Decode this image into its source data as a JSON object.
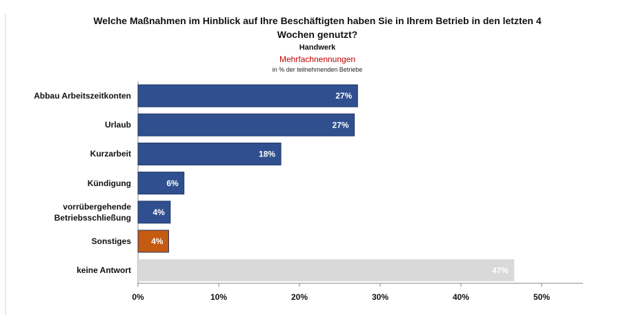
{
  "chart_data": {
    "type": "bar",
    "orientation": "horizontal",
    "title": "Welche Maßnahmen im Hinblick auf Ihre Beschäftigten haben Sie in Ihrem Betrieb in den letzten 4 Wochen genutzt?",
    "subtitle": "Handwerk",
    "annotations": [
      "Mehrfachnennungen",
      "in % der teilnehmenden Betriebe"
    ],
    "categories": [
      "Abbau Arbeitszeitkonten",
      "Urlaub",
      "Kurzarbeit",
      "Kündigung",
      "vorrübergehende Betriebsschließung",
      "Sonstiges",
      "keine Antwort"
    ],
    "values": [
      27.2,
      26.8,
      17.7,
      5.7,
      4.0,
      3.8,
      46.6
    ],
    "value_labels": [
      "27%",
      "27%",
      "18%",
      "6%",
      "4%",
      "4%",
      "47%"
    ],
    "colors": [
      "#2f4f8f",
      "#2f4f8f",
      "#2f4f8f",
      "#2f4f8f",
      "#2f4f8f",
      "#c55a11",
      "#d9d9d9"
    ],
    "xlim": [
      0,
      55
    ],
    "xticks": [
      {
        "value": 0,
        "label": "0%"
      },
      {
        "value": 10,
        "label": "10%"
      },
      {
        "value": 20,
        "label": "20%"
      },
      {
        "value": 30,
        "label": "30%"
      },
      {
        "value": 40,
        "label": "40%"
      },
      {
        "value": 50,
        "label": "50%"
      }
    ],
    "grid": false
  }
}
